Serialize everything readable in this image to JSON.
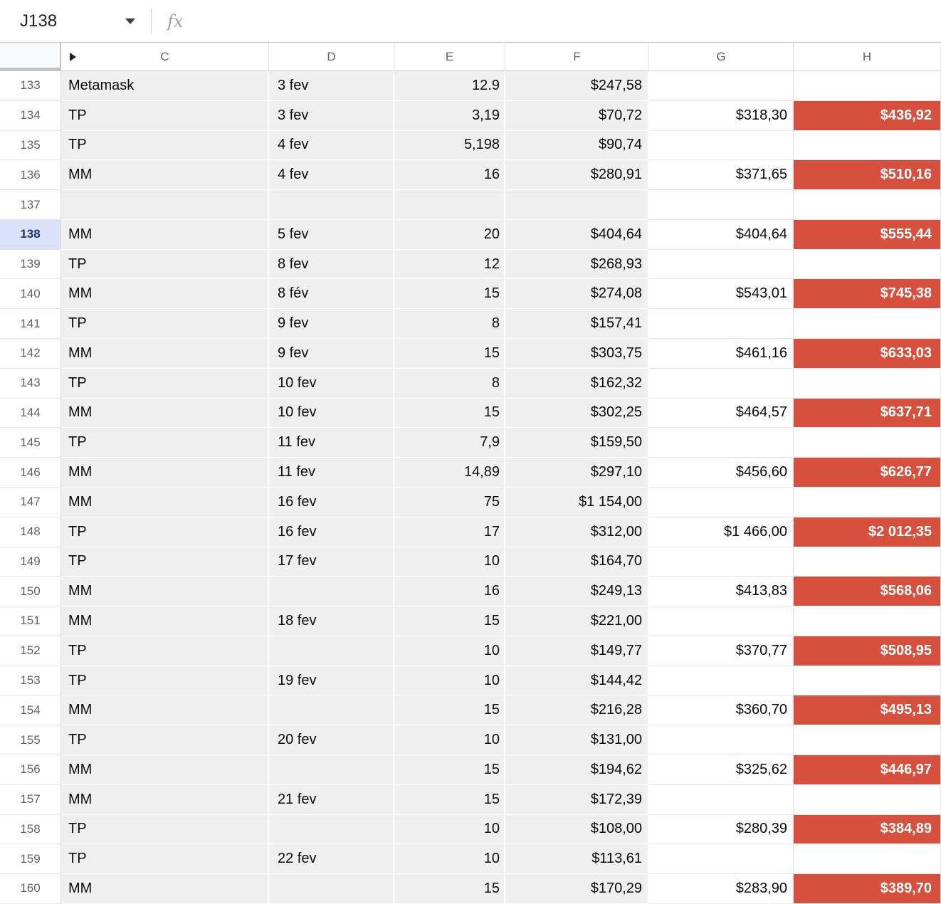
{
  "formula_bar": {
    "name_box_value": "J138",
    "fx_label": "fx",
    "formula_value": ""
  },
  "columns": [
    "C",
    "D",
    "E",
    "F",
    "G",
    "H"
  ],
  "rows": [
    {
      "num": "133",
      "c": "Metamask",
      "d": "3 fev",
      "e": "12.9",
      "f": "$247,58",
      "g": "",
      "h": ""
    },
    {
      "num": "134",
      "c": "TP",
      "d": "3 fev",
      "e": "3,19",
      "f": "$70,72",
      "g": "$318,30",
      "h": "$436,92"
    },
    {
      "num": "135",
      "c": "TP",
      "d": "4 fev",
      "e": "5,198",
      "f": "$90,74",
      "g": "",
      "h": ""
    },
    {
      "num": "136",
      "c": "MM",
      "d": "4 fev",
      "e": "16",
      "f": "$280,91",
      "g": "$371,65",
      "h": "$510,16"
    },
    {
      "num": "137",
      "c": "",
      "d": "",
      "e": "",
      "f": "",
      "g": "",
      "h": ""
    },
    {
      "num": "138",
      "c": "MM",
      "d": "5 fev",
      "e": "20",
      "f": "$404,64",
      "g": "$404,64",
      "h": "$555,44",
      "selected": true
    },
    {
      "num": "139",
      "c": "TP",
      "d": "8 fev",
      "e": "12",
      "f": "$268,93",
      "g": "",
      "h": ""
    },
    {
      "num": "140",
      "c": "MM",
      "d": "8 fév",
      "e": "15",
      "f": "$274,08",
      "g": "$543,01",
      "h": "$745,38"
    },
    {
      "num": "141",
      "c": "TP",
      "d": "9 fev",
      "e": "8",
      "f": "$157,41",
      "g": "",
      "h": ""
    },
    {
      "num": "142",
      "c": "MM",
      "d": "9 fev",
      "e": "15",
      "f": "$303,75",
      "g": "$461,16",
      "h": "$633,03"
    },
    {
      "num": "143",
      "c": "TP",
      "d": "10 fev",
      "e": "8",
      "f": "$162,32",
      "g": "",
      "h": ""
    },
    {
      "num": "144",
      "c": "MM",
      "d": "10 fev",
      "e": "15",
      "f": "$302,25",
      "g": "$464,57",
      "h": "$637,71"
    },
    {
      "num": "145",
      "c": "TP",
      "d": "11 fev",
      "e": "7,9",
      "f": "$159,50",
      "g": "",
      "h": ""
    },
    {
      "num": "146",
      "c": "MM",
      "d": "11 fev",
      "e": "14,89",
      "f": "$297,10",
      "g": "$456,60",
      "h": "$626,77"
    },
    {
      "num": "147",
      "c": "MM",
      "d": "16 fev",
      "e": "75",
      "f": "$1 154,00",
      "g": "",
      "h": ""
    },
    {
      "num": "148",
      "c": "TP",
      "d": "16 fev",
      "e": "17",
      "f": "$312,00",
      "g": "$1 466,00",
      "h": "$2 012,35"
    },
    {
      "num": "149",
      "c": "TP",
      "d": "17 fev",
      "e": "10",
      "f": "$164,70",
      "g": "",
      "h": ""
    },
    {
      "num": "150",
      "c": "MM",
      "d": "",
      "e": "16",
      "f": "$249,13",
      "g": "$413,83",
      "h": "$568,06"
    },
    {
      "num": "151",
      "c": "MM",
      "d": "18 fev",
      "e": "15",
      "f": "$221,00",
      "g": "",
      "h": ""
    },
    {
      "num": "152",
      "c": "TP",
      "d": "",
      "e": "10",
      "f": "$149,77",
      "g": "$370,77",
      "h": "$508,95"
    },
    {
      "num": "153",
      "c": "TP",
      "d": "19 fev",
      "e": "10",
      "f": "$144,42",
      "g": "",
      "h": ""
    },
    {
      "num": "154",
      "c": "MM",
      "d": "",
      "e": "15",
      "f": "$216,28",
      "g": "$360,70",
      "h": "$495,13"
    },
    {
      "num": "155",
      "c": "TP",
      "d": "20 fev",
      "e": "10",
      "f": "$131,00",
      "g": "",
      "h": ""
    },
    {
      "num": "156",
      "c": "MM",
      "d": "",
      "e": "15",
      "f": "$194,62",
      "g": "$325,62",
      "h": "$446,97"
    },
    {
      "num": "157",
      "c": "MM",
      "d": "21 fev",
      "e": "15",
      "f": "$172,39",
      "g": "",
      "h": ""
    },
    {
      "num": "158",
      "c": "TP",
      "d": "",
      "e": "10",
      "f": "$108,00",
      "g": "$280,39",
      "h": "$384,89"
    },
    {
      "num": "159",
      "c": "TP",
      "d": "22 fev",
      "e": "10",
      "f": "$113,61",
      "g": "",
      "h": ""
    },
    {
      "num": "160",
      "c": "MM",
      "d": "",
      "e": "15",
      "f": "$170,29",
      "g": "$283,90",
      "h": "$389,70"
    }
  ],
  "colors": {
    "highlight_red": "#d6503d",
    "cell_fill_gray": "#efefef",
    "selected_row_header_bg": "#d9e2fa",
    "selected_row_header_text": "#1f3464"
  }
}
